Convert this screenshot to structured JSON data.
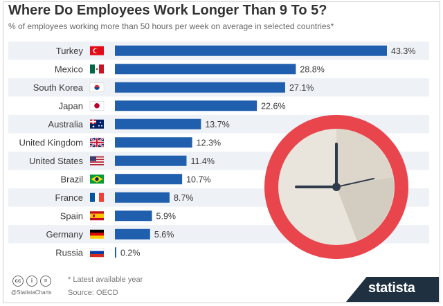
{
  "title": "Where Do Employees Work Longer Than 9 To 5?",
  "subtitle": "% of employees working more than 50 hours per week on average in selected countries*",
  "footer": {
    "note": "* Latest available year",
    "source": "Source: OECD",
    "handle": "@StatistaCharts",
    "brand": "statista",
    "cc_icons": [
      "cc",
      "i",
      "="
    ]
  },
  "colors": {
    "bar": "#1f5fae",
    "row_band": "#eef1f6",
    "clock_ring": "#e8454c",
    "clock_face": "#e9e5dd"
  },
  "chart_data": {
    "type": "bar",
    "orientation": "horizontal",
    "categories": [
      "Turkey",
      "Mexico",
      "South Korea",
      "Japan",
      "Australia",
      "United Kingdom",
      "United States",
      "Brazil",
      "France",
      "Spain",
      "Germany",
      "Russia"
    ],
    "values": [
      43.3,
      28.8,
      27.1,
      22.6,
      13.7,
      12.3,
      11.4,
      10.7,
      8.7,
      5.9,
      5.6,
      0.2
    ],
    "value_labels": [
      "43.3%",
      "28.8%",
      "27.1%",
      "22.6%",
      "13.7%",
      "12.3%",
      "11.4%",
      "10.7%",
      "8.7%",
      "5.9%",
      "5.6%",
      "0.2%"
    ],
    "flag_icons": [
      "turkey-flag-icon",
      "mexico-flag-icon",
      "south-korea-flag-icon",
      "japan-flag-icon",
      "australia-flag-icon",
      "uk-flag-icon",
      "usa-flag-icon",
      "brazil-flag-icon",
      "france-flag-icon",
      "spain-flag-icon",
      "germany-flag-icon",
      "russia-flag-icon"
    ],
    "xlim": [
      0,
      43.3
    ],
    "grid": false,
    "legend": "none"
  }
}
